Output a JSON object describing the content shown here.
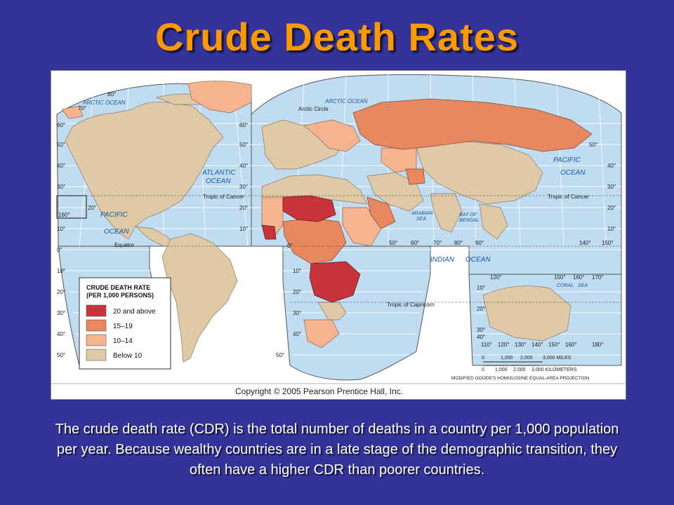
{
  "title": "Crude Death Rates",
  "caption": "The crude death rate (CDR) is the total number of deaths in a country per 1,000 population per year. Because wealthy countries are in a late stage of the demographic transition, they often have a higher CDR than poorer countries.",
  "map": {
    "copyright": "Copyright © 2005 Pearson Prentice Hall, Inc.",
    "projection": "MODIFIED GOODE'S HOMOLOSINE EQUAL-AREA PROJECTION",
    "colors": {
      "ocean": "#bfdcf0",
      "grid": "#ffffff",
      "land_below_10": "#e0c9a6",
      "land_10_14": "#f5b48f",
      "land_15_19": "#e9875e",
      "land_20_above": "#c8343a",
      "ice": "#ffffff"
    },
    "ocean_labels": {
      "arctic_left": "ARCTIC OCEAN",
      "arctic_right": "ARCTIC OCEAN",
      "atlantic_1": "ATLANTIC",
      "atlantic_2": "OCEAN",
      "pacific_left_1": "PACIFIC",
      "pacific_left_2": "OCEAN",
      "pacific_right_1": "PACIFIC",
      "pacific_right_2": "OCEAN",
      "indian_1": "INDIAN",
      "indian_2": "OCEAN",
      "arabian_1": "ARABIAN",
      "arabian_2": "SEA",
      "bengal_1": "BAY OF",
      "bengal_2": "BENGAL",
      "coral": "CORAL",
      "sea": "SEA"
    },
    "line_labels": {
      "arctic_circle": "Arctic Circle",
      "tropic_cancer_left": "Tropic of Cancer",
      "tropic_cancer_right": "Tropic of Cancer",
      "equator": "Equator",
      "tropic_capricorn": "Tropic of Capricorn"
    },
    "left_lat_ticks": [
      "80°",
      "70°",
      "60°",
      "50°",
      "40°",
      "30°",
      "20°",
      "10°",
      "0°",
      "10°",
      "20°",
      "30°",
      "40°",
      "50°"
    ],
    "mid_lat_ticks": [
      "60°",
      "50°",
      "40°",
      "30°",
      "20°",
      "10°",
      "0°",
      "10°",
      "20°",
      "30°",
      "40°",
      "50°"
    ],
    "right_lat_ticks": [
      "50°",
      "40°",
      "30°",
      "20°",
      "10°"
    ],
    "lon_ticks": [
      "50°",
      "60°",
      "70°",
      "80°",
      "90°",
      "140°",
      "150°"
    ],
    "inset_top_lon": [
      "120°",
      "150°",
      "160°",
      "170°"
    ],
    "inset_bottom_lon": [
      "110°",
      "120°",
      "130°",
      "140°",
      "150°",
      "160°",
      "180°"
    ],
    "inset_lat": [
      "10°",
      "20°",
      "30°",
      "40°"
    ],
    "box_160": "160°",
    "legend": {
      "title_1": "CRUDE DEATH RATE",
      "title_2": "(PER 1,000 PERSONS)",
      "items": [
        "20 and above",
        "15–19",
        "10–14",
        "Below 10"
      ]
    },
    "scale": {
      "miles_ticks": [
        "0",
        "1,000",
        "2,000",
        "3,000 MILES"
      ],
      "km_ticks": [
        "0",
        "1,000",
        "2,000",
        "3,000 KILOMETERS"
      ]
    }
  }
}
